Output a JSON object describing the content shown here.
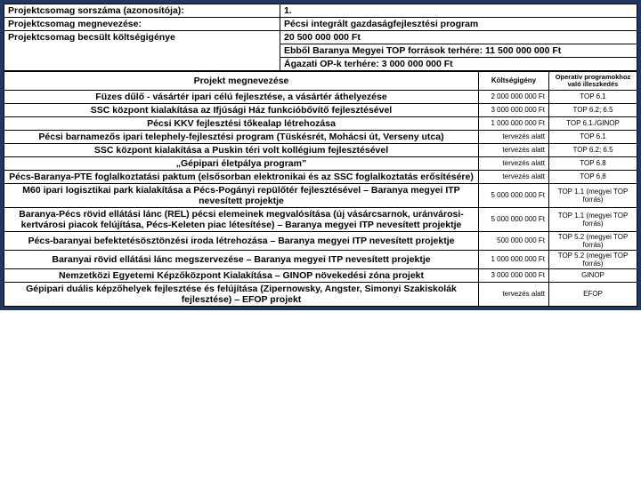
{
  "header": {
    "rows": [
      {
        "label": "Projektcsomag sorszáma (azonosítója):",
        "value": "1."
      },
      {
        "label": "Projektcsomag megnevezése:",
        "value": "Pécsi integrált gazdaságfejlesztési program"
      },
      {
        "label": "Projektcsomag becsült költségigénye",
        "value": "20 500 000 000 Ft"
      }
    ],
    "extra": [
      "Ebből Baranya Megyei TOP források terhére: 11 500 000 000 Ft",
      "Ágazati OP-k terhére: 3 000 000 000 Ft"
    ]
  },
  "table": {
    "columns": {
      "name": "Projekt megnevezése",
      "cost": "Költségigény",
      "op": "Operatív programokhoz való illeszkedés"
    },
    "rows": [
      {
        "name": "Füzes dűlő - vásártér ipari célú fejlesztése, a vásártér áthelyezése",
        "cost": "2 000 000 000 Ft",
        "op": "TOP 6.1"
      },
      {
        "name": "SSC központ kialakítása az Ifjúsági Ház funkcióbővítő fejlesztésével",
        "cost": "3 000 000 000 Ft",
        "op": "TOP 6.2; 6.5"
      },
      {
        "name": "Pécsi KKV fejlesztési tőkealap létrehozása",
        "cost": "1 000 000 000 Ft",
        "op": "TOP 6.1./GINOP"
      },
      {
        "name": "Pécsi barnamezős ipari telephely-fejlesztési program (Tüskésrét, Mohácsi út, Verseny utca)",
        "cost": "tervezés alatt",
        "op": "TOP 6.1"
      },
      {
        "name": "SSC központ kialakítása a Puskin téri volt kollégium fejlesztésével",
        "cost": "tervezés alatt",
        "op": "TOP 6.2; 6.5"
      },
      {
        "name": "„Gépipari életpálya program”",
        "cost": "tervezés alatt",
        "op": "TOP 6.8"
      },
      {
        "name": "Pécs-Baranya-PTE foglalkoztatási paktum (elsősorban elektronikai és az SSC foglalkoztatás erősítésére)",
        "cost": "tervezés alatt",
        "op": "TOP 6.8"
      },
      {
        "name": "M60 ipari logisztikai park kialakítása a Pécs-Pogányi repülőtér fejlesztésével – Baranya megyei ITP nevesített projektje",
        "cost": "5 000 000 000 Ft",
        "op": "TOP 1.1 (megyei TOP forrás)"
      },
      {
        "name": "Baranya-Pécs rövid ellátási lánc (REL) pécsi elemeinek megvalósítása (új vásárcsarnok, uránvárosi-kertvárosi piacok felújítása, Pécs-Keleten piac létesítése) – Baranya megyei ITP nevesített projektje",
        "cost": "5 000 000 000 Ft",
        "op": "TOP 1.1 (megyei TOP forrás)"
      },
      {
        "name": "Pécs-baranyai befektetésösztönzési iroda létrehozása – Baranya megyei ITP nevesített projektje",
        "cost": "500 000 000 Ft",
        "op": "TOP 5.2 (megyei TOP forrás)"
      },
      {
        "name": "Baranyai rövid ellátási lánc megszervezése – Baranya megyei ITP nevesített projektje",
        "cost": "1 000 000 000 Ft",
        "op": "TOP 5.2 (megyei TOP forrás)"
      },
      {
        "name": "Nemzetközi Egyetemi Képzőközpont Kialakítása – GINOP növekedési zóna projekt",
        "cost": "3 000 000 000 Ft",
        "op": "GINOP"
      },
      {
        "name": "Gépipari duális képzőhelyek fejlesztése és felújítása (Zipernowsky, Angster, Simonyi Szakiskolák fejlesztése) – EFOP projekt",
        "cost": "tervezés alatt",
        "op": "EFOP"
      }
    ]
  },
  "style": {
    "outer_bg": "#1f3864",
    "border": "#000000",
    "font_main": 10.5,
    "font_small": 8
  }
}
